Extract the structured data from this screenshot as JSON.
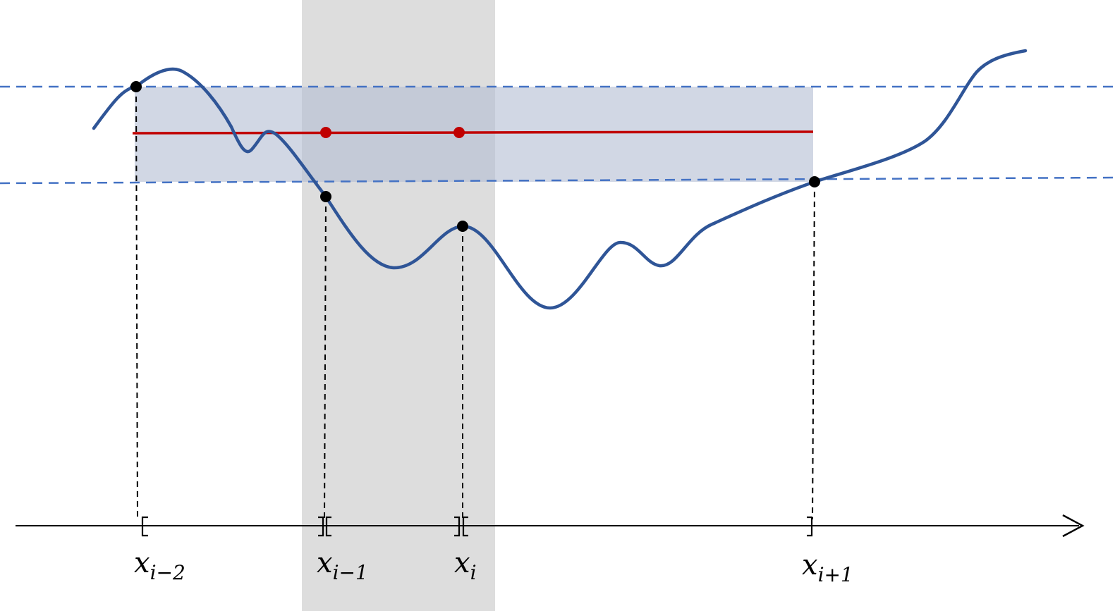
{
  "diagram": {
    "colors": {
      "curve": "#2f5597",
      "band_fill": "#b4bfd3",
      "highlight_fill": "#a6a6a6",
      "dashed_level": "#4472c4",
      "mean_line": "#c00000",
      "guide": "#000000",
      "axis": "#000000",
      "point": "#000000"
    },
    "ticks": [
      {
        "base": "x",
        "sub": "i−2"
      },
      {
        "base": "x",
        "sub": "i−1"
      },
      {
        "base": "x",
        "sub": "i"
      },
      {
        "base": "x",
        "sub": "i+1"
      }
    ]
  }
}
